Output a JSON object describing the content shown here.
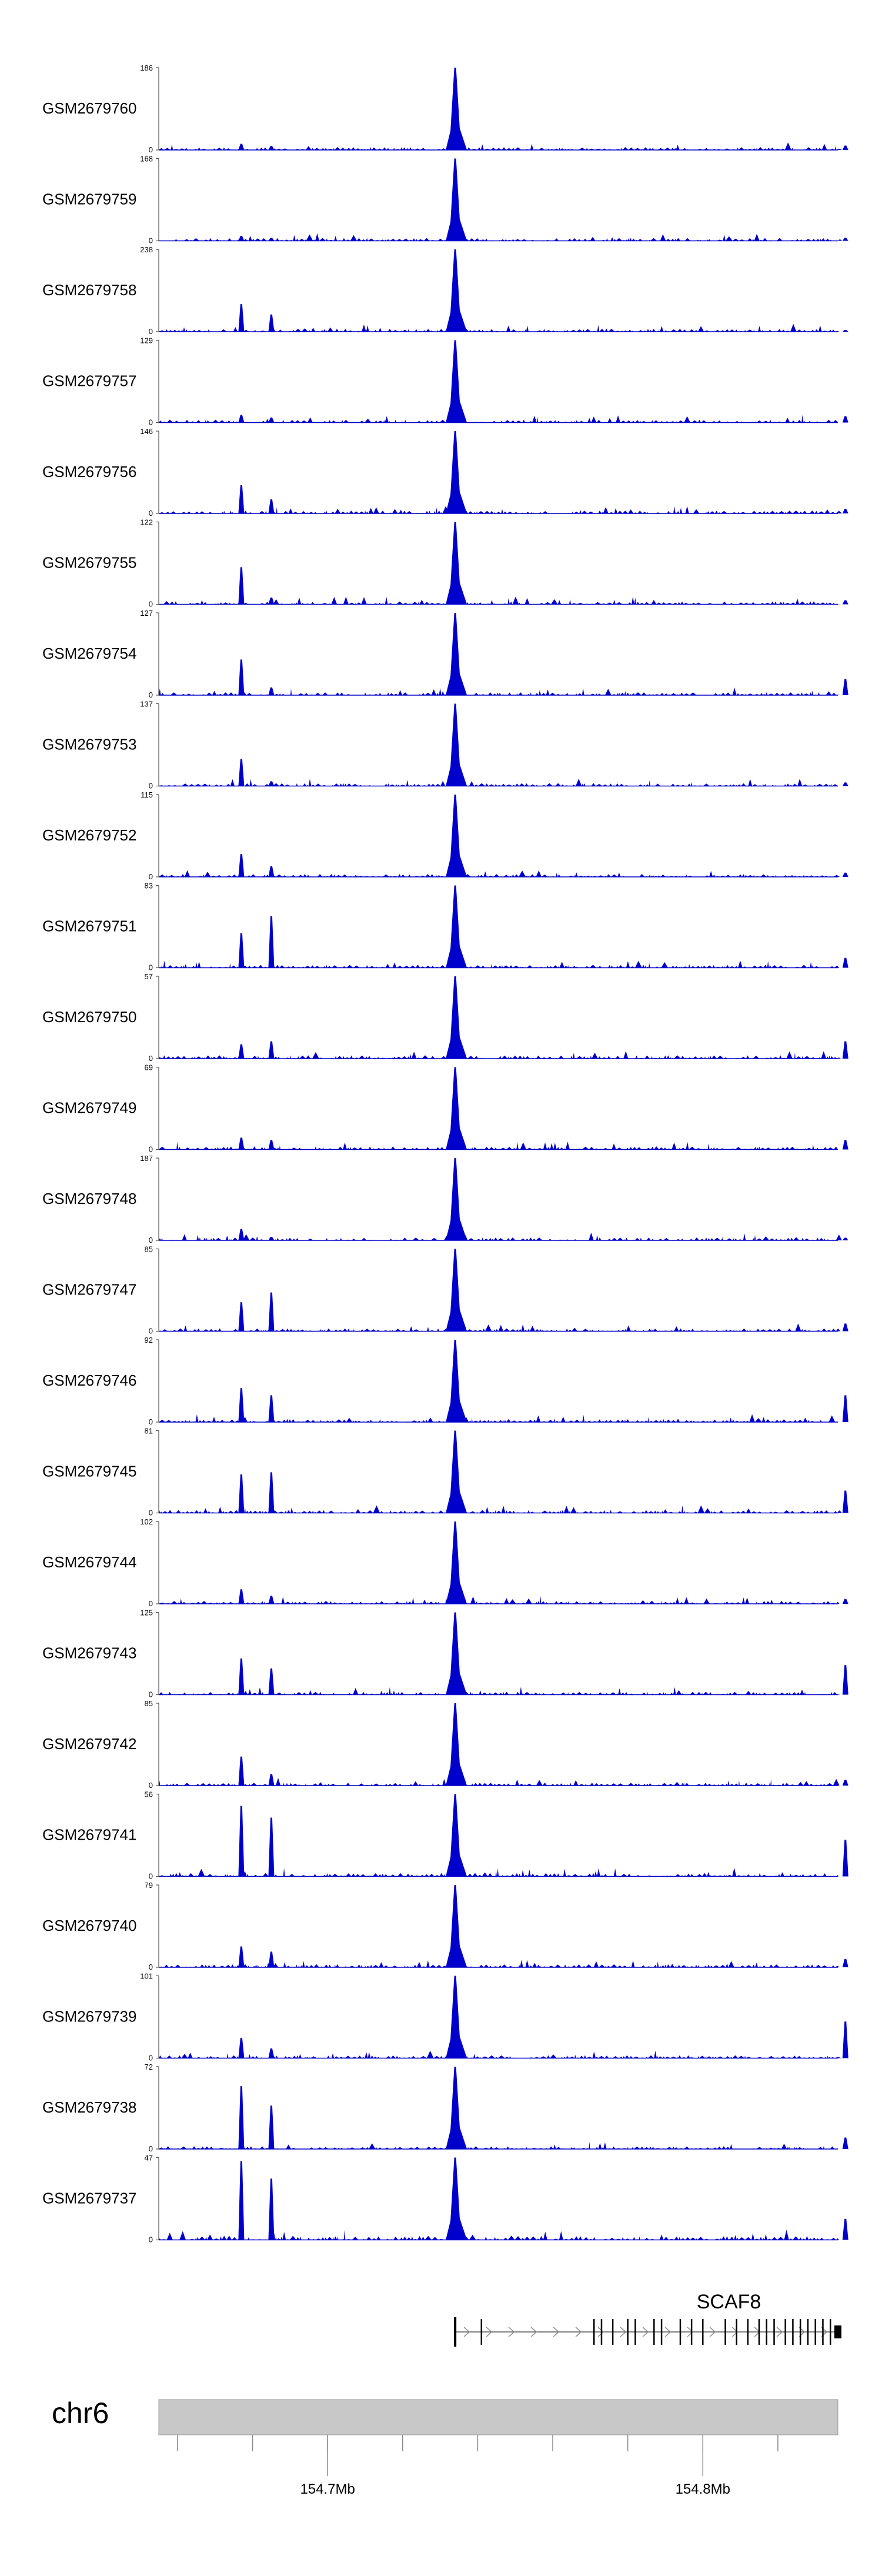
{
  "chart_data": {
    "type": "area",
    "title": "",
    "xlabel": "",
    "ylabel": "",
    "region": {
      "chromosome": "chr6",
      "start_mb": 154.655,
      "end_mb": 154.836
    },
    "colors": {
      "signal": "#0000CC",
      "axis": "#555555",
      "ideogram": "#C8C8C8",
      "gene": "#000000",
      "intron_arrow": "#888888"
    },
    "peak_positions_mb": [
      154.677,
      154.685,
      154.734,
      154.838
    ],
    "tracks": [
      {
        "name": "GSM2679760",
        "ymax": 186,
        "peaks": [
          14,
          9,
          186,
          10
        ]
      },
      {
        "name": "GSM2679759",
        "ymax": 168,
        "peaks": [
          10,
          6,
          168,
          6
        ]
      },
      {
        "name": "GSM2679758",
        "ymax": 238,
        "peaks": [
          80,
          50,
          238,
          5
        ]
      },
      {
        "name": "GSM2679757",
        "ymax": 129,
        "peaks": [
          12,
          8,
          129,
          10
        ]
      },
      {
        "name": "GSM2679756",
        "ymax": 146,
        "peaks": [
          50,
          25,
          146,
          8
        ]
      },
      {
        "name": "GSM2679755",
        "ymax": 122,
        "peaks": [
          55,
          10,
          122,
          6
        ]
      },
      {
        "name": "GSM2679754",
        "ymax": 127,
        "peaks": [
          55,
          12,
          127,
          25
        ]
      },
      {
        "name": "GSM2679753",
        "ymax": 137,
        "peaks": [
          45,
          8,
          137,
          6
        ]
      },
      {
        "name": "GSM2679752",
        "ymax": 115,
        "peaks": [
          32,
          15,
          115,
          6
        ]
      },
      {
        "name": "GSM2679751",
        "ymax": 83,
        "peaks": [
          35,
          52,
          83,
          10
        ]
      },
      {
        "name": "GSM2679750",
        "ymax": 57,
        "peaks": [
          10,
          12,
          57,
          12
        ]
      },
      {
        "name": "GSM2679749",
        "ymax": 69,
        "peaks": [
          10,
          8,
          69,
          8
        ]
      },
      {
        "name": "GSM2679748",
        "ymax": 187,
        "peaks": [
          26,
          8,
          187,
          6
        ]
      },
      {
        "name": "GSM2679747",
        "ymax": 85,
        "peaks": [
          30,
          40,
          85,
          8
        ]
      },
      {
        "name": "GSM2679746",
        "ymax": 92,
        "peaks": [
          38,
          30,
          92,
          30
        ]
      },
      {
        "name": "GSM2679745",
        "ymax": 81,
        "peaks": [
          38,
          40,
          81,
          22
        ]
      },
      {
        "name": "GSM2679744",
        "ymax": 102,
        "peaks": [
          18,
          10,
          102,
          6
        ]
      },
      {
        "name": "GSM2679743",
        "ymax": 125,
        "peaks": [
          55,
          40,
          125,
          45
        ]
      },
      {
        "name": "GSM2679742",
        "ymax": 85,
        "peaks": [
          30,
          12,
          85,
          6
        ]
      },
      {
        "name": "GSM2679741",
        "ymax": 56,
        "peaks": [
          48,
          40,
          56,
          25
        ]
      },
      {
        "name": "GSM2679740",
        "ymax": 79,
        "peaks": [
          20,
          15,
          79,
          8
        ]
      },
      {
        "name": "GSM2679739",
        "ymax": 101,
        "peaks": [
          25,
          12,
          101,
          45
        ]
      },
      {
        "name": "GSM2679738",
        "ymax": 72,
        "peaks": [
          55,
          38,
          72,
          10
        ]
      },
      {
        "name": "GSM2679737",
        "ymax": 47,
        "peaks": [
          45,
          35,
          47,
          12
        ]
      }
    ],
    "gene": {
      "name": "SCAF8",
      "start_mb": 154.734,
      "end_mb": 154.836,
      "exons_mb": [
        154.734,
        154.741,
        154.771,
        154.773,
        154.776,
        154.78,
        154.782,
        154.787,
        154.789,
        154.794,
        154.797,
        154.8,
        154.806,
        154.809,
        154.812,
        154.815,
        154.817,
        154.819,
        154.822,
        154.824,
        154.826,
        154.828,
        154.83,
        154.832,
        154.834,
        154.836
      ]
    },
    "ideogram": {
      "label": "chr6"
    },
    "x_ticks_mb": [
      154.66,
      154.68,
      154.7,
      154.72,
      154.74,
      154.76,
      154.78,
      154.8,
      154.82
    ],
    "x_tick_labels": [
      {
        "value": 154.7,
        "label": "154.7Mb"
      },
      {
        "value": 154.8,
        "label": "154.8Mb"
      }
    ]
  }
}
